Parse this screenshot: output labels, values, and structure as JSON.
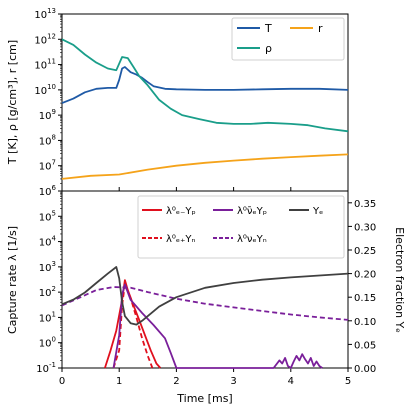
{
  "chart_data": [
    {
      "type": "line",
      "ylabel": "T [K], ρ [g/cm³], r [cm]",
      "yscale": "log",
      "ylim": [
        1000000.0,
        10000000000000.0
      ],
      "xlim": [
        0,
        5
      ],
      "yticks": [
        "10^6",
        "10^7",
        "10^8",
        "10^9",
        "10^10",
        "10^11",
        "10^12",
        "10^13"
      ],
      "legend_position": "top-right",
      "series": [
        {
          "name": "T",
          "color": "#1f5aa6",
          "x": [
            0,
            0.2,
            0.4,
            0.6,
            0.8,
            0.95,
            1.0,
            1.05,
            1.1,
            1.2,
            1.3,
            1.4,
            1.5,
            1.6,
            1.8,
            2.0,
            2.5,
            3.0,
            3.5,
            4.0,
            4.5,
            5.0
          ],
          "y": [
            3000000000.0,
            4500000000.0,
            8000000000.0,
            11000000000.0,
            12000000000.0,
            12000000000.0,
            25000000000.0,
            70000000000.0,
            80000000000.0,
            50000000000.0,
            40000000000.0,
            30000000000.0,
            20000000000.0,
            14000000000.0,
            11000000000.0,
            10500000000.0,
            10000000000.0,
            10000000000.0,
            10500000000.0,
            11000000000.0,
            11000000000.0,
            10000000000.0
          ]
        },
        {
          "name": "ρ",
          "color": "#1a9e8a",
          "x": [
            0,
            0.2,
            0.4,
            0.6,
            0.8,
            0.95,
            1.05,
            1.15,
            1.25,
            1.35,
            1.5,
            1.7,
            1.9,
            2.1,
            2.4,
            2.7,
            3.0,
            3.3,
            3.6,
            4.0,
            4.3,
            4.6,
            5.0
          ],
          "y": [
            1000000000000.0,
            600000000000.0,
            250000000000.0,
            120000000000.0,
            70000000000.0,
            60000000000.0,
            200000000000.0,
            180000000000.0,
            80000000000.0,
            35000000000.0,
            15000000000.0,
            4000000000.0,
            1800000000.0,
            1000000000.0,
            700000000.0,
            500000000.0,
            450000000.0,
            450000000.0,
            500000000.0,
            450000000.0,
            400000000.0,
            300000000.0,
            230000000.0
          ]
        },
        {
          "name": "r",
          "color": "#f5a31a",
          "x": [
            0,
            0.5,
            1.0,
            1.5,
            2.0,
            2.5,
            3.0,
            3.5,
            4.0,
            4.5,
            5.0
          ],
          "y": [
            3000000.0,
            4000000.0,
            4500000.0,
            7000000.0,
            10000000.0,
            13000000.0,
            16000000.0,
            19000000.0,
            22000000.0,
            25000000.0,
            28000000.0
          ]
        }
      ]
    },
    {
      "type": "line",
      "xlabel": "Time [ms]",
      "ylabel": "Capture rate λ [1/s]",
      "ylabel_right": "Electron fraction Yₑ",
      "yscale": "log",
      "ylim": [
        0.1,
        1000000.0
      ],
      "xlim": [
        0,
        5
      ],
      "xticks": [
        "0",
        "1",
        "2",
        "3",
        "4",
        "5"
      ],
      "yticks": [
        "10^-1",
        "10^0",
        "10^1",
        "10^2",
        "10^3",
        "10^4",
        "10^5"
      ],
      "y2lim": [
        0,
        0.375
      ],
      "y2ticks": [
        "0.00",
        "0.05",
        "0.10",
        "0.15",
        "0.20",
        "0.25",
        "0.30",
        "0.35"
      ],
      "legend_position": "top-right",
      "legend": [
        {
          "label": "λ⁰ₑ₋Yₚ",
          "color": "#e0101e",
          "dash": "solid"
        },
        {
          "label": "λ⁰ₑ₊Yₙ",
          "color": "#e0101e",
          "dash": "dashed"
        },
        {
          "label": "λ⁰ν̄ₑYₚ",
          "color": "#7a1f9a",
          "dash": "solid"
        },
        {
          "label": "λ⁰νₑYₙ",
          "color": "#7a1f9a",
          "dash": "dashed"
        },
        {
          "label": "Yₑ",
          "color": "#404040",
          "dash": "solid"
        }
      ],
      "series": [
        {
          "name": "λ⁰ₑ₋Yₚ",
          "color": "#e0101e",
          "dash": "solid",
          "axis": "left",
          "x": [
            0.75,
            0.85,
            0.95,
            1.05,
            1.1,
            1.15,
            1.25,
            1.35,
            1.45,
            1.55,
            1.65,
            1.72
          ],
          "y": [
            0.1,
            0.5,
            3,
            50,
            300,
            120,
            30,
            8,
            2,
            0.5,
            0.15,
            0.1
          ]
        },
        {
          "name": "λ⁰ₑ₊Yₙ",
          "color": "#e0101e",
          "dash": "dashed",
          "axis": "left",
          "x": [
            0.9,
            1.0,
            1.05,
            1.1,
            1.2,
            1.3,
            1.4,
            1.5,
            1.58
          ],
          "y": [
            0.1,
            0.5,
            30,
            200,
            60,
            10,
            1.5,
            0.3,
            0.1
          ]
        },
        {
          "name": "λ⁰ν̄ₑYₚ",
          "color": "#7a1f9a",
          "dash": "solid",
          "axis": "left",
          "x": [
            0.9,
            1.0,
            1.05,
            1.1,
            1.2,
            1.4,
            1.6,
            1.8,
            1.9,
            2.0,
            2.05,
            3.7,
            3.8,
            3.85,
            3.9,
            3.95,
            4.0,
            4.05,
            4.1,
            4.15,
            4.2,
            4.25,
            4.3,
            4.35,
            4.4,
            4.45,
            4.5,
            4.55
          ],
          "y": [
            0.1,
            2,
            80,
            200,
            50,
            15,
            5,
            1.5,
            0.4,
            0.1,
            0.1,
            0.1,
            0.2,
            0.15,
            0.25,
            0.12,
            0.1,
            0.18,
            0.3,
            0.2,
            0.35,
            0.22,
            0.15,
            0.25,
            0.12,
            0.18,
            0.12,
            0.1
          ]
        },
        {
          "name": "λ⁰νₑYₙ",
          "color": "#7a1f9a",
          "dash": "dashed",
          "axis": "left",
          "x": [
            0,
            0.3,
            0.6,
            0.9,
            1.2,
            1.5,
            2.0,
            2.5,
            3.0,
            3.5,
            4.0,
            4.5,
            5.0
          ],
          "y": [
            30,
            60,
            120,
            160,
            150,
            100,
            55,
            35,
            25,
            18,
            13,
            10,
            8
          ]
        },
        {
          "name": "Yₑ",
          "color": "#404040",
          "dash": "solid",
          "axis": "right",
          "x": [
            0,
            0.2,
            0.4,
            0.6,
            0.8,
            0.95,
            1.0,
            1.05,
            1.1,
            1.2,
            1.3,
            1.4,
            1.5,
            1.7,
            2.0,
            2.5,
            3.0,
            3.5,
            4.0,
            4.5,
            5.0
          ],
          "y": [
            0.135,
            0.145,
            0.16,
            0.18,
            0.2,
            0.214,
            0.19,
            0.14,
            0.11,
            0.095,
            0.092,
            0.1,
            0.11,
            0.13,
            0.15,
            0.17,
            0.18,
            0.187,
            0.192,
            0.196,
            0.2
          ]
        }
      ]
    }
  ]
}
